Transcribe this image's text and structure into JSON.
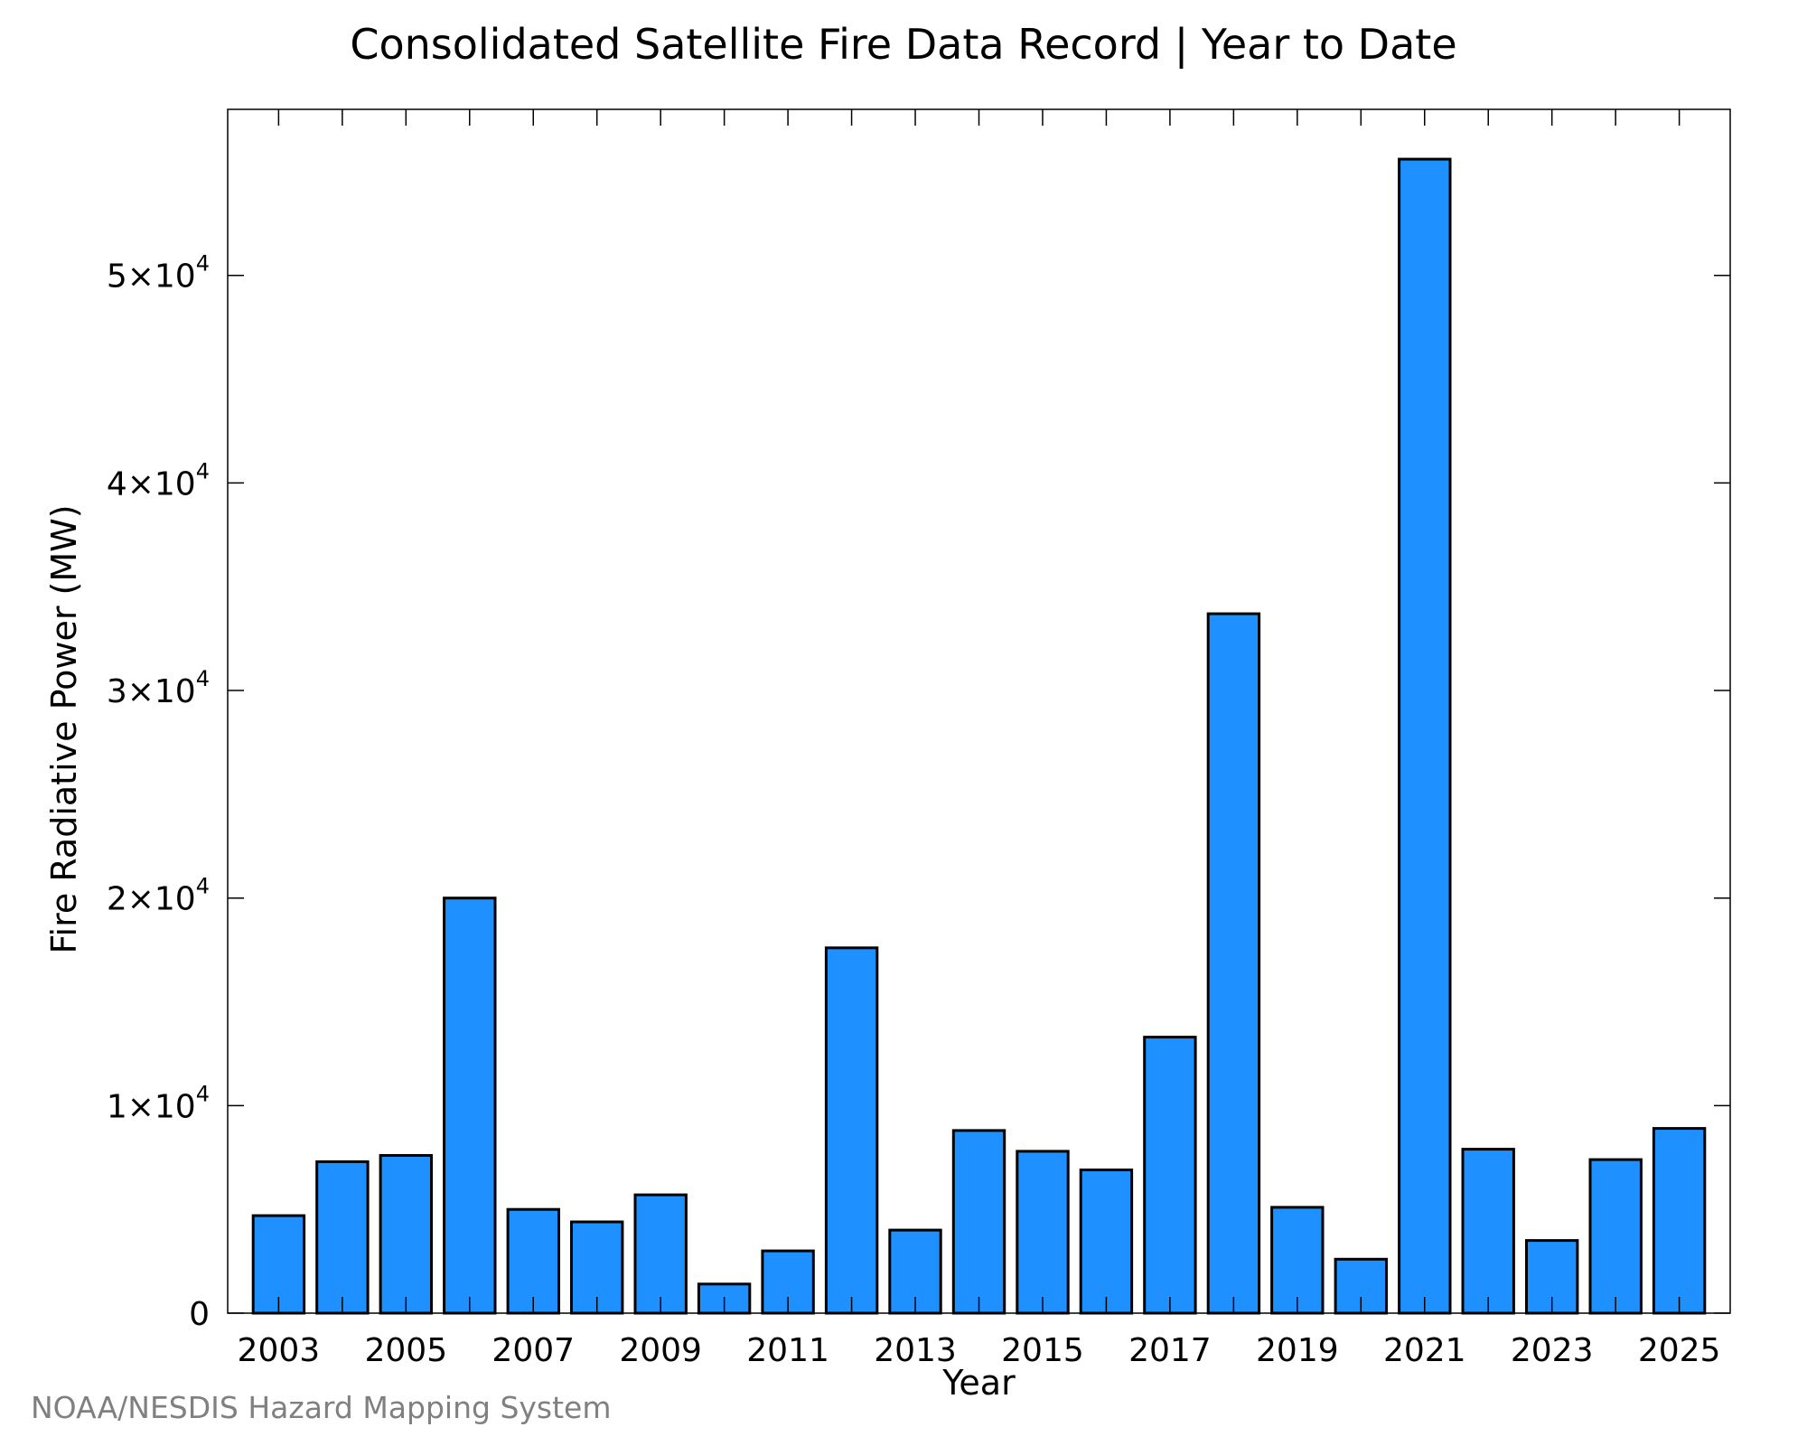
{
  "chart_data": {
    "type": "bar",
    "title": "Consolidated Satellite Fire Data Record | Year to Date",
    "xlabel": "Year",
    "ylabel": "Fire Radiative Power (MW)",
    "credit": "NOAA/NESDIS Hazard Mapping System",
    "ylim": [
      0,
      58000
    ],
    "xlim": [
      2002.2,
      2025.8
    ],
    "bar_color": "#1e90ff",
    "x_tick_labels": [
      "2003",
      "2005",
      "2007",
      "2009",
      "2011",
      "2013",
      "2015",
      "2017",
      "2019",
      "2021",
      "2023",
      "2025"
    ],
    "y_ticks": [
      {
        "value": 0,
        "mantissa": "0",
        "exponent": ""
      },
      {
        "value": 10000,
        "mantissa": "1×10",
        "exponent": "4"
      },
      {
        "value": 20000,
        "mantissa": "2×10",
        "exponent": "4"
      },
      {
        "value": 30000,
        "mantissa": "3×10",
        "exponent": "4"
      },
      {
        "value": 40000,
        "mantissa": "4×10",
        "exponent": "4"
      },
      {
        "value": 50000,
        "mantissa": "5×10",
        "exponent": "4"
      }
    ],
    "categories": [
      2003,
      2004,
      2005,
      2006,
      2007,
      2008,
      2009,
      2010,
      2011,
      2012,
      2013,
      2014,
      2015,
      2016,
      2017,
      2018,
      2019,
      2020,
      2021,
      2022,
      2023,
      2024,
      2025
    ],
    "values": [
      4700,
      7300,
      7600,
      20000,
      5000,
      4400,
      5700,
      1400,
      3000,
      17600,
      4000,
      8800,
      7800,
      6900,
      13300,
      33700,
      5100,
      2600,
      55600,
      7900,
      3500,
      7400,
      8900
    ],
    "grid": false,
    "legend": "none"
  }
}
